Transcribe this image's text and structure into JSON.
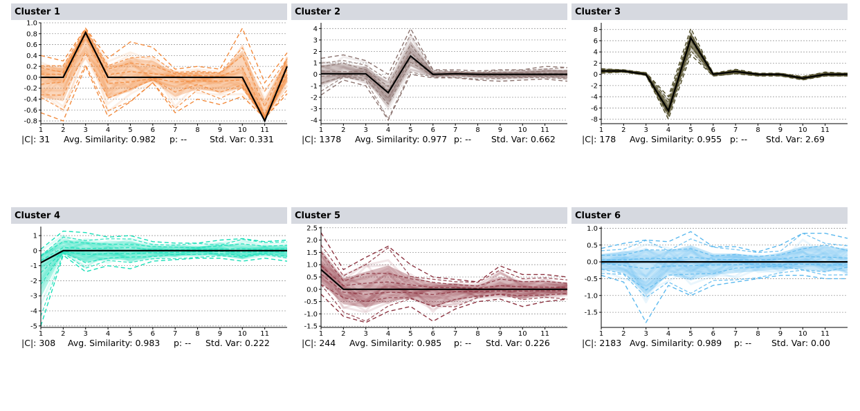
{
  "panels": [
    {
      "title": "Cluster 1",
      "stats": {
        "size": "|C|: 31",
        "avg_similarity": "Avg. Similarity: 0.982",
        "p": "p: --",
        "std_var": "Std. Var: 0.331"
      },
      "color": "#f28a3c"
    },
    {
      "title": "Cluster 2",
      "stats": {
        "size": "|C|: 1378",
        "avg_similarity": "Avg. Similarity: 0.977",
        "p": "p: --",
        "std_var": "Std. Var: 0.662"
      },
      "color": "#8c7470"
    },
    {
      "title": "Cluster 3",
      "stats": {
        "size": "|C|: 178",
        "avg_similarity": "Avg. Similarity: 0.955",
        "p": "p: --",
        "std_var": "Std. Var: 2.69"
      },
      "color": "#4d4a26"
    },
    {
      "title": "Cluster 4",
      "stats": {
        "size": "|C|: 308",
        "avg_similarity": "Avg. Similarity: 0.983",
        "p": "p: --",
        "std_var": "Std. Var: 0.222"
      },
      "color": "#17dfb8"
    },
    {
      "title": "Cluster 5",
      "stats": {
        "size": "|C|: 244",
        "avg_similarity": "Avg. Similarity: 0.985",
        "p": "p: --",
        "std_var": "Std. Var: 0.226"
      },
      "color": "#8c3340"
    },
    {
      "title": "Cluster 6",
      "stats": {
        "size": "|C|: 2183",
        "avg_similarity": "Avg. Similarity: 0.989",
        "p": "p: --",
        "std_var": "Std. Var: 0.00"
      },
      "color": "#5ab8ee"
    }
  ],
  "chart_data": [
    {
      "type": "line",
      "x": [
        1,
        2,
        3,
        4,
        5,
        6,
        7,
        8,
        9,
        10,
        11,
        12
      ],
      "x_ticks": [
        "1",
        "2",
        "3",
        "4",
        "5",
        "6",
        "7",
        "8",
        "9",
        "10",
        "11"
      ],
      "ylim": [
        -0.85,
        1.0
      ],
      "y_ticks": [
        "1.0",
        "0.8",
        "0.6",
        "0.4",
        "0.2",
        "0.0",
        "-0.2",
        "-0.4",
        "-0.6",
        "-0.8"
      ],
      "y_tick_values": [
        1.0,
        0.8,
        0.6,
        0.4,
        0.2,
        0.0,
        -0.2,
        -0.4,
        -0.6,
        -0.8
      ],
      "grid": true,
      "centroid": [
        0.0,
        0.0,
        0.82,
        0.0,
        0.0,
        0.0,
        0.0,
        0.0,
        0.0,
        0.0,
        -0.8,
        0.2
      ],
      "upper_envelope": [
        0.4,
        0.3,
        0.9,
        0.35,
        0.65,
        0.55,
        0.15,
        0.2,
        0.15,
        0.9,
        -0.1,
        0.45
      ],
      "lower_envelope": [
        -0.65,
        -0.8,
        0.2,
        -0.72,
        -0.45,
        -0.1,
        -0.65,
        -0.4,
        -0.5,
        -0.35,
        -0.75,
        -0.3
      ],
      "series_color": "#f28a3c"
    },
    {
      "type": "line",
      "x": [
        1,
        2,
        3,
        4,
        5,
        6,
        7,
        8,
        9,
        10,
        11,
        12
      ],
      "x_ticks": [
        "1",
        "2",
        "3",
        "4",
        "5",
        "6",
        "7",
        "8",
        "9",
        "10",
        "11"
      ],
      "ylim": [
        -4.3,
        4.5
      ],
      "y_ticks": [
        "4",
        "3",
        "2",
        "1",
        "0",
        "-1",
        "-2",
        "-3",
        "-4"
      ],
      "y_tick_values": [
        4,
        3,
        2,
        1,
        0,
        -1,
        -2,
        -3,
        -4
      ],
      "grid": true,
      "centroid": [
        0.05,
        0.05,
        0.05,
        -1.6,
        1.6,
        0.0,
        0.05,
        0.0,
        0.0,
        0.0,
        0.0,
        0.0
      ],
      "upper_envelope": [
        1.4,
        1.7,
        1.2,
        0.0,
        4.0,
        0.4,
        0.4,
        0.3,
        0.4,
        0.4,
        0.7,
        0.6
      ],
      "lower_envelope": [
        -1.8,
        -0.5,
        -1.0,
        -4.0,
        0.0,
        -0.3,
        -0.3,
        -0.5,
        -0.6,
        -0.5,
        -0.4,
        -0.6
      ],
      "series_color": "#8c7470"
    },
    {
      "type": "line",
      "x": [
        1,
        2,
        3,
        4,
        5,
        6,
        7,
        8,
        9,
        10,
        11,
        12
      ],
      "x_ticks": [
        "1",
        "2",
        "3",
        "4",
        "5",
        "6",
        "7",
        "8",
        "9",
        "10",
        "11"
      ],
      "ylim": [
        -8.8,
        9.2
      ],
      "y_ticks": [
        "8",
        "6",
        "4",
        "2",
        "0",
        "-2",
        "-4",
        "-6",
        "-8"
      ],
      "y_tick_values": [
        8,
        6,
        4,
        2,
        0,
        -2,
        -4,
        -6,
        -8
      ],
      "grid": true,
      "centroid": [
        0.6,
        0.6,
        0.0,
        -6.5,
        6.5,
        0.0,
        0.5,
        0.0,
        0.0,
        -0.7,
        0.0,
        0.0
      ],
      "upper_envelope": [
        1.0,
        0.8,
        0.3,
        -4.0,
        8.2,
        0.2,
        0.9,
        0.2,
        0.2,
        -0.4,
        0.4,
        0.2
      ],
      "lower_envelope": [
        0.2,
        0.4,
        -0.2,
        -8.0,
        3.5,
        -0.3,
        0.1,
        -0.3,
        -0.3,
        -1.0,
        -0.3,
        -0.3
      ],
      "series_color": "#4d4a26"
    },
    {
      "type": "line",
      "x": [
        1,
        2,
        3,
        4,
        5,
        6,
        7,
        8,
        9,
        10,
        11,
        12
      ],
      "x_ticks": [
        "1",
        "2",
        "3",
        "4",
        "5",
        "6",
        "7",
        "8",
        "9",
        "10",
        "11"
      ],
      "ylim": [
        -5.1,
        1.6
      ],
      "y_ticks": [
        "1",
        "0",
        "-1",
        "-2",
        "-3",
        "-4",
        "-5"
      ],
      "y_tick_values": [
        1,
        0,
        -1,
        -2,
        -3,
        -4,
        -5
      ],
      "grid": true,
      "centroid": [
        -0.8,
        0.0,
        0.0,
        0.0,
        0.0,
        0.0,
        0.0,
        0.0,
        0.0,
        0.0,
        0.0,
        0.0
      ],
      "upper_envelope": [
        0.1,
        1.3,
        1.2,
        0.9,
        1.0,
        0.6,
        0.5,
        0.5,
        0.7,
        0.8,
        0.6,
        0.7
      ],
      "lower_envelope": [
        -5.0,
        -0.3,
        -1.4,
        -1.0,
        -1.2,
        -0.7,
        -0.6,
        -0.5,
        -0.5,
        -0.7,
        -0.5,
        -0.7
      ],
      "series_color": "#17dfb8"
    },
    {
      "type": "line",
      "x": [
        1,
        2,
        3,
        4,
        5,
        6,
        7,
        8,
        9,
        10,
        11,
        12
      ],
      "x_ticks": [
        "1",
        "2",
        "3",
        "4",
        "5",
        "6",
        "7",
        "8",
        "9",
        "10",
        "11"
      ],
      "ylim": [
        -1.55,
        2.55
      ],
      "y_ticks": [
        "2.5",
        "2.0",
        "1.5",
        "1.0",
        "0.5",
        "0.0",
        "-0.5",
        "-1.0",
        "-1.5"
      ],
      "y_tick_values": [
        2.5,
        2.0,
        1.5,
        1.0,
        0.5,
        0.0,
        -0.5,
        -1.0,
        -1.5
      ],
      "grid": true,
      "centroid": [
        0.8,
        0.0,
        0.0,
        0.0,
        0.0,
        0.0,
        0.0,
        0.0,
        0.0,
        0.0,
        0.0,
        0.0
      ],
      "upper_envelope": [
        2.3,
        0.8,
        1.3,
        1.75,
        1.0,
        0.5,
        0.4,
        0.3,
        0.95,
        0.6,
        0.6,
        0.5
      ],
      "lower_envelope": [
        -0.2,
        -1.1,
        -1.35,
        -0.9,
        -0.7,
        -1.3,
        -0.8,
        -0.5,
        -0.4,
        -0.7,
        -0.5,
        -0.4
      ],
      "series_color": "#8c3340"
    },
    {
      "type": "line",
      "x": [
        1,
        2,
        3,
        4,
        5,
        6,
        7,
        8,
        9,
        10,
        11,
        12
      ],
      "x_ticks": [
        "1",
        "2",
        "3",
        "4",
        "5",
        "6",
        "7",
        "8",
        "9",
        "10",
        "11"
      ],
      "ylim": [
        -1.95,
        1.05
      ],
      "y_ticks": [
        "1.0",
        "0.5",
        "0.0",
        "-0.5",
        "-1.0",
        "-1.5"
      ],
      "y_tick_values": [
        1.0,
        0.5,
        0.0,
        -0.5,
        -1.0,
        -1.5
      ],
      "grid": true,
      "centroid": [
        0.0,
        0.0,
        0.0,
        0.0,
        0.0,
        0.0,
        0.0,
        0.0,
        0.0,
        0.0,
        0.0,
        0.0
      ],
      "upper_envelope": [
        0.4,
        0.55,
        0.65,
        0.6,
        0.9,
        0.45,
        0.45,
        0.3,
        0.5,
        0.85,
        0.85,
        0.7
      ],
      "lower_envelope": [
        -0.4,
        -0.6,
        -1.8,
        -0.7,
        -1.0,
        -0.7,
        -0.6,
        -0.5,
        -0.4,
        -0.4,
        -0.5,
        -0.5
      ],
      "series_color": "#5ab8ee"
    }
  ]
}
